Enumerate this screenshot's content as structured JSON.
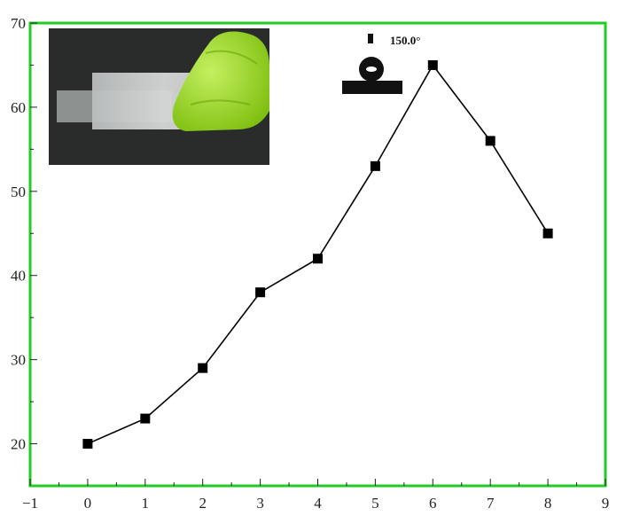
{
  "chart_data": {
    "type": "line",
    "title": "",
    "xlabel": "",
    "ylabel": "",
    "xlim": [
      -1,
      9
    ],
    "ylim": [
      15,
      70
    ],
    "xticks": [
      -1,
      0,
      1,
      2,
      3,
      4,
      5,
      6,
      7,
      8,
      9
    ],
    "yticks": [
      20,
      30,
      40,
      50,
      60,
      70
    ],
    "x": [
      0,
      1,
      2,
      3,
      4,
      5,
      6,
      7,
      8
    ],
    "series": [
      {
        "values": [
          20,
          23,
          29,
          38,
          42,
          53,
          65,
          56,
          45
        ],
        "color": "#000000",
        "marker": "square"
      }
    ],
    "frame_color": "#22cc22",
    "grid": false,
    "annotations": [
      "150.0°"
    ],
    "insets": [
      {
        "kind": "photo",
        "subject": "translucent film strip held by green-gloved fingers on dark background"
      },
      {
        "kind": "contact-angle-droplet",
        "label": "150.0°"
      }
    ]
  }
}
